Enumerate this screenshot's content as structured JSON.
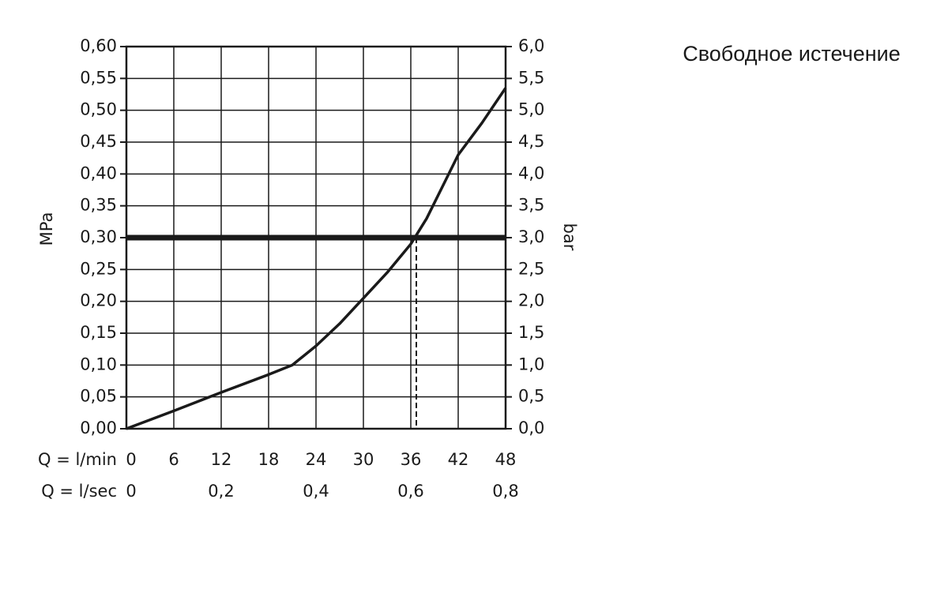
{
  "chart_data": {
    "type": "line",
    "title": "Свободное истечение",
    "y_label": "MPa",
    "y2_label": "bar",
    "x_label": "Q = l/min",
    "x2_label": "Q = l/sec",
    "xlim": [
      0,
      48
    ],
    "xticks": [
      0,
      6,
      12,
      18,
      24,
      30,
      36,
      42,
      48
    ],
    "x2lim": [
      0,
      0.8
    ],
    "x2ticks": [
      0,
      {
        "value": 0.2,
        "label": "0,2"
      },
      {
        "value": 0.4,
        "label": "0,4"
      },
      {
        "value": 0.6,
        "label": "0,6"
      },
      {
        "value": 0.8,
        "label": "0,8"
      }
    ],
    "ylim": [
      0,
      0.6
    ],
    "yticks": [
      {
        "value": 0,
        "label": "0,00"
      },
      {
        "value": 0.05,
        "label": "0,05"
      },
      {
        "value": 0.1,
        "label": "0,10"
      },
      {
        "value": 0.15,
        "label": "0,15"
      },
      {
        "value": 0.2,
        "label": "0,20"
      },
      {
        "value": 0.25,
        "label": "0,25"
      },
      {
        "value": 0.3,
        "label": "0,30"
      },
      {
        "value": 0.35,
        "label": "0,35"
      },
      {
        "value": 0.4,
        "label": "0,40"
      },
      {
        "value": 0.45,
        "label": "0,45"
      },
      {
        "value": 0.5,
        "label": "0,50"
      },
      {
        "value": 0.55,
        "label": "0,55"
      },
      {
        "value": 0.6,
        "label": "0,60"
      }
    ],
    "y2lim": [
      0,
      6
    ],
    "y2ticks": [
      {
        "value": 0,
        "label": "0,0"
      },
      {
        "value": 0.5,
        "label": "0,5"
      },
      {
        "value": 1,
        "label": "1,0"
      },
      {
        "value": 1.5,
        "label": "1,5"
      },
      {
        "value": 2,
        "label": "2,0"
      },
      {
        "value": 2.5,
        "label": "2,5"
      },
      {
        "value": 3,
        "label": "3,0"
      },
      {
        "value": 3.5,
        "label": "3,5"
      },
      {
        "value": 4,
        "label": "4,0"
      },
      {
        "value": 4.5,
        "label": "4,5"
      },
      {
        "value": 5,
        "label": "5,0"
      },
      {
        "value": 5.5,
        "label": "5,5"
      },
      {
        "value": 6,
        "label": "6,0"
      }
    ],
    "grid": true,
    "reference_y": 0.3,
    "reference_x": 36.7,
    "color": "#1a1a1a",
    "x": [
      0,
      6,
      12,
      18,
      21,
      24,
      27,
      30,
      33,
      36,
      38,
      40,
      42,
      45,
      48
    ],
    "values": [
      0,
      0.028,
      0.057,
      0.085,
      0.1,
      0.13,
      0.165,
      0.205,
      0.245,
      0.29,
      0.33,
      0.38,
      0.43,
      0.48,
      0.535
    ]
  }
}
